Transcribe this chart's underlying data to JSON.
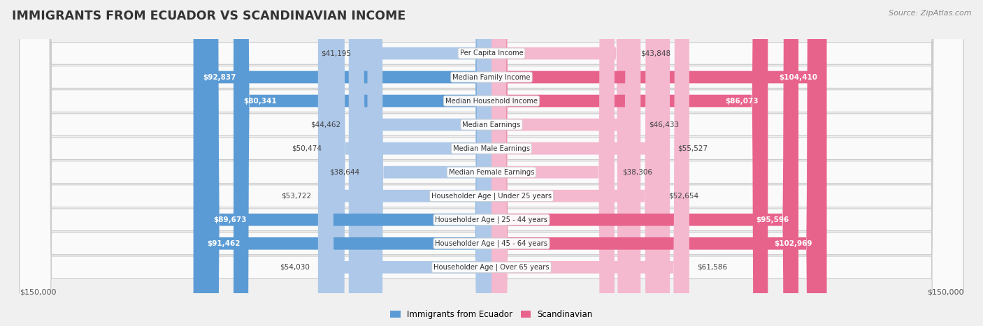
{
  "title": "IMMIGRANTS FROM ECUADOR VS SCANDINAVIAN INCOME",
  "source": "Source: ZipAtlas.com",
  "categories": [
    "Per Capita Income",
    "Median Family Income",
    "Median Household Income",
    "Median Earnings",
    "Median Male Earnings",
    "Median Female Earnings",
    "Householder Age | Under 25 years",
    "Householder Age | 25 - 44 years",
    "Householder Age | 45 - 64 years",
    "Householder Age | Over 65 years"
  ],
  "ecuador_values": [
    41195,
    92837,
    80341,
    44462,
    50474,
    38644,
    53722,
    89673,
    91462,
    54030
  ],
  "scandinavian_values": [
    43848,
    104410,
    86073,
    46433,
    55527,
    38306,
    52654,
    95596,
    102969,
    61586
  ],
  "ecuador_labels": [
    "$41,195",
    "$92,837",
    "$80,341",
    "$44,462",
    "$50,474",
    "$38,644",
    "$53,722",
    "$89,673",
    "$91,462",
    "$54,030"
  ],
  "scandinavian_labels": [
    "$43,848",
    "$104,410",
    "$86,073",
    "$46,433",
    "$55,527",
    "$38,306",
    "$52,654",
    "$95,596",
    "$102,969",
    "$61,586"
  ],
  "ecuador_color_light": "#adc8e8",
  "ecuador_color_dark": "#5b9bd5",
  "scandinavian_color_light": "#f4b8cf",
  "scandinavian_color_dark": "#e8638c",
  "ecuador_threshold": 65000,
  "scandinavian_threshold": 65000,
  "max_value": 150000,
  "background_color": "#f0f0f0",
  "row_background": "#fafafa",
  "legend_label_ecuador": "Immigrants from Ecuador",
  "legend_label_scandinavian": "Scandinavian",
  "xlabel_left": "$150,000",
  "xlabel_right": "$150,000"
}
